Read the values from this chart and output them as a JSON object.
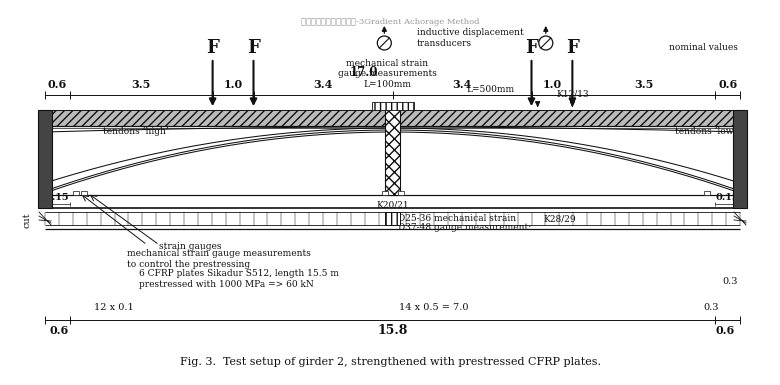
{
  "fig_width": 7.6,
  "fig_height": 3.65,
  "bg_color": "#ffffff",
  "title": "Fig. 3.  Test setup of girder 2, strengthened with prestressed CFRP plates.",
  "top_title": "预应力纤维复合材料加固-3Gradient Achorage Method",
  "dim_labels_top": [
    "0.6",
    "3.5",
    "1.0",
    "3.4",
    "3.4",
    "1.0",
    "3.5",
    "0.6"
  ],
  "positions_m": [
    0.0,
    0.6,
    4.1,
    5.1,
    8.5,
    11.9,
    12.9,
    16.4,
    17.0
  ],
  "colors": {
    "black": "#111111",
    "flange_fill": "#bbbbbb",
    "block_fill": "#555555",
    "white": "#ffffff"
  },
  "labels": {
    "F": "F",
    "17.0": "17.0",
    "nominal_values": "nominal values",
    "inductive": "inductive displacement\ntransducers",
    "mech_strain_top": "mechanical strain\ngauge measurements\nL=100mm",
    "L500": "L=500mm",
    "K1213": "K12/13",
    "tendons_high": "tendons ‘high’",
    "tendons_low": "tendons ‘low’",
    "strain_gauges": "strain gauges",
    "mech_control": "mechanical strain gauge measurements\nto control the prestressing",
    "cfrp_info": "6 CFRP plates Sikadur S512, length 15.5 m\nprestressed with 1000 MPa => 60 kN",
    "K2021": "K20/21",
    "D2536": "D25-36 mechanical strain",
    "D3748": "D37-48 gauge measurement:",
    "K2829": "K28/29",
    "cut": "cut",
    "0.15": "0.15",
    "0.3": "0.3",
    "15.8": "15.8",
    "12x01": "12 x 0.1",
    "14x05": "14 x 0.5 = 7.0",
    "0.6": "0.6"
  }
}
